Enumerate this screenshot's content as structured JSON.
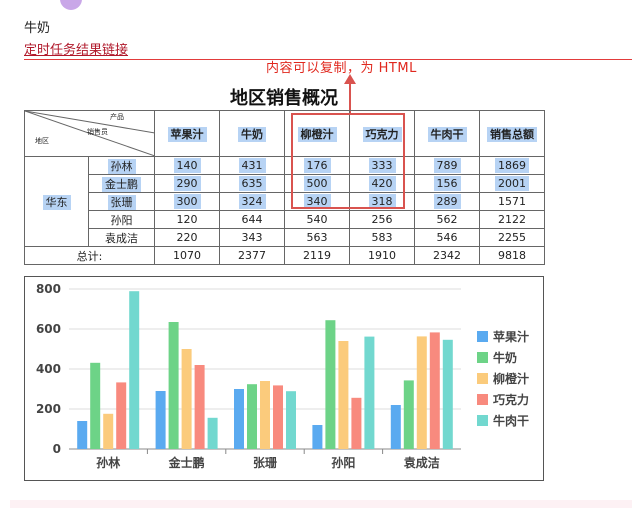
{
  "header": {
    "title": "牛奶",
    "link_text": "定时任务结果链接"
  },
  "annotation": {
    "text": "内容可以复制，为 HTML"
  },
  "report": {
    "title": "地区销售概况",
    "corner": {
      "product": "产品",
      "salesperson": "销售员",
      "area": "地区"
    },
    "columns": [
      "苹果汁",
      "牛奶",
      "柳橙汁",
      "巧克力",
      "牛肉干",
      "销售总额"
    ],
    "region": "华东",
    "rows": [
      {
        "name": "孙林",
        "values": [
          "140",
          "431",
          "176",
          "333",
          "789",
          "1869"
        ]
      },
      {
        "name": "金士鹏",
        "values": [
          "290",
          "635",
          "500",
          "420",
          "156",
          "2001"
        ]
      },
      {
        "name": "张珊",
        "values": [
          "300",
          "324",
          "340",
          "318",
          "289",
          "1571"
        ]
      },
      {
        "name": "孙阳",
        "values": [
          "120",
          "644",
          "540",
          "256",
          "562",
          "2122"
        ]
      },
      {
        "name": "袁成洁",
        "values": [
          "220",
          "343",
          "563",
          "583",
          "546",
          "2255"
        ]
      }
    ],
    "total_label": "总计:",
    "totals": [
      "1070",
      "2377",
      "2119",
      "1910",
      "2342",
      "9818"
    ]
  },
  "chart_data": {
    "type": "bar",
    "categories": [
      "孙林",
      "金士鹏",
      "张珊",
      "孙阳",
      "袁成洁"
    ],
    "series": [
      {
        "name": "苹果汁",
        "color": "#5aaaf0",
        "values": [
          140,
          290,
          300,
          120,
          220
        ]
      },
      {
        "name": "牛奶",
        "color": "#6dd387",
        "values": [
          431,
          635,
          324,
          644,
          343
        ]
      },
      {
        "name": "柳橙汁",
        "color": "#fbcb7c",
        "values": [
          176,
          500,
          340,
          540,
          563
        ]
      },
      {
        "name": "巧克力",
        "color": "#f88a7e",
        "values": [
          333,
          420,
          318,
          256,
          583
        ]
      },
      {
        "name": "牛肉干",
        "color": "#72d8cf",
        "values": [
          789,
          156,
          289,
          562,
          546
        ]
      }
    ],
    "yticks": [
      "0",
      "200",
      "400",
      "600",
      "800"
    ],
    "ylim": [
      0,
      800
    ],
    "grid": true,
    "legend": "right"
  }
}
